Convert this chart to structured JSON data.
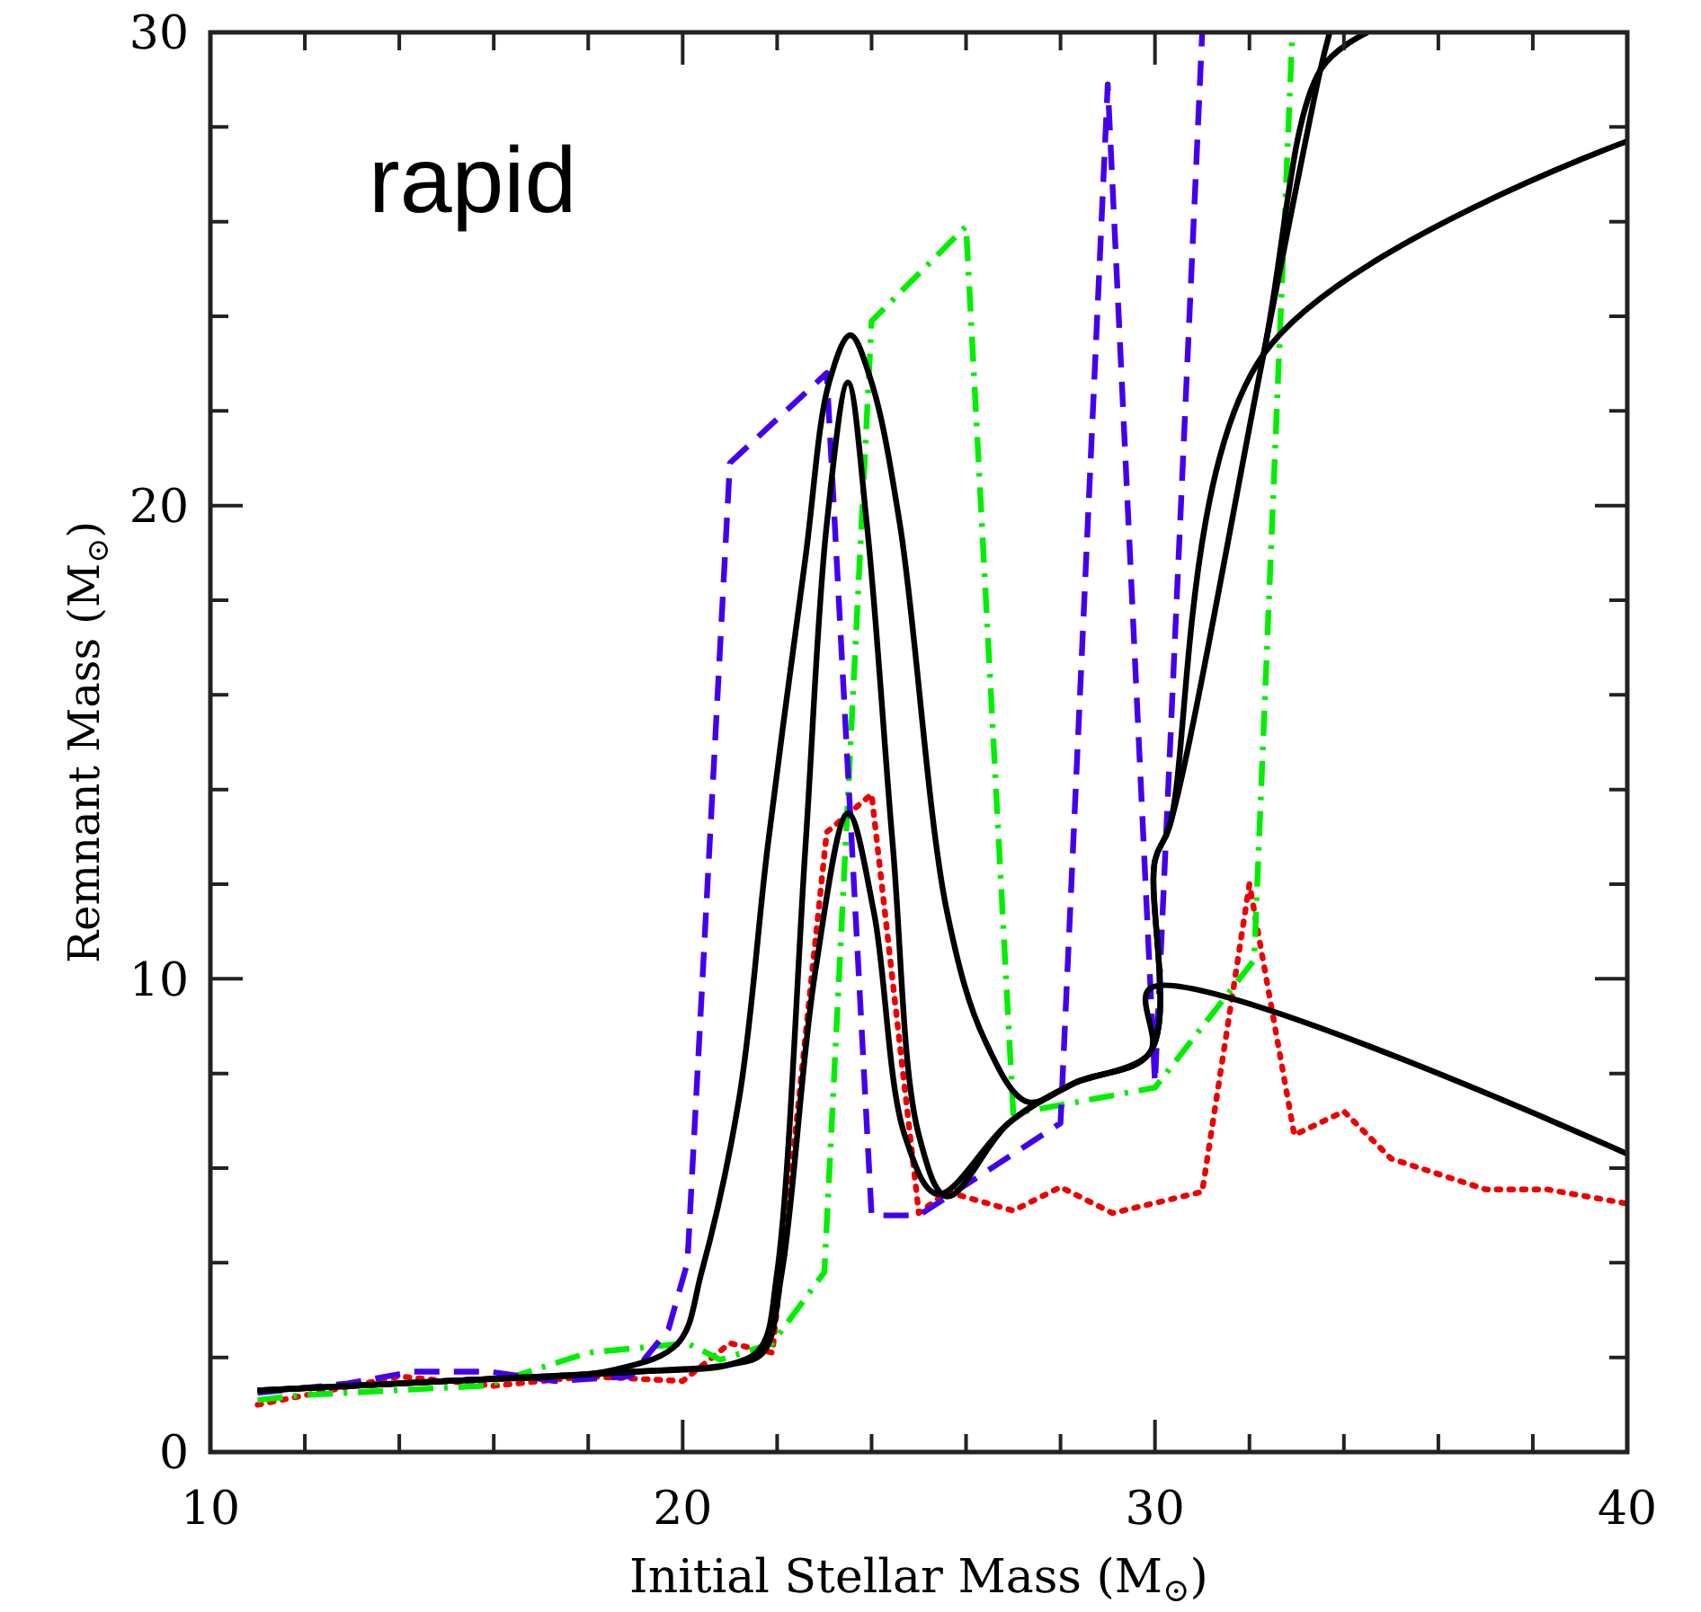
{
  "chart_data": {
    "type": "line",
    "xlabel": "Initial Stellar Mass (M$_{⊙}$)",
    "ylabel": "Remnant Mass (M$_{⊙}$)",
    "xlim": [
      10,
      40
    ],
    "ylim": [
      0,
      30
    ],
    "xticks": [
      10,
      {
        "value": 12,
        "label": null
      },
      {
        "value": 14,
        "label": null
      },
      {
        "value": 16,
        "label": null
      },
      {
        "value": 18,
        "label": null
      },
      20,
      {
        "value": 22,
        "label": null
      },
      {
        "value": 24,
        "label": null
      },
      {
        "value": 26,
        "label": null
      },
      {
        "value": 28,
        "label": null
      },
      30,
      {
        "value": 32,
        "label": null
      },
      {
        "value": 34,
        "label": null
      },
      {
        "value": 36,
        "label": null
      },
      {
        "value": 38,
        "label": null
      },
      40
    ],
    "yticks": [
      0,
      {
        "value": 2,
        "label": null
      },
      {
        "value": 4,
        "label": null
      },
      {
        "value": 6,
        "label": null
      },
      {
        "value": 8,
        "label": null
      },
      10,
      {
        "value": 12,
        "label": null
      },
      {
        "value": 14,
        "label": null
      },
      {
        "value": 16,
        "label": null
      },
      {
        "value": 18,
        "label": null
      },
      20,
      {
        "value": 22,
        "label": null
      },
      {
        "value": 24,
        "label": null
      },
      {
        "value": 26,
        "label": null
      },
      {
        "value": 28,
        "label": null
      },
      30
    ],
    "grid": false,
    "marker": "none",
    "annotations": [
      "rapid"
    ],
    "series": [
      {
        "color": "#ee0000",
        "line_style": "dotted",
        "x": [
          11,
          14,
          16,
          18,
          20,
          21,
          21.9,
          23.05,
          24,
          25,
          25.6,
          27,
          28,
          29.1,
          31,
          32,
          32.95,
          34,
          35,
          37,
          38.3,
          40
        ],
        "values": [
          1,
          1.6,
          1.4,
          1.6,
          1.5,
          2.3,
          2.1,
          13.1,
          13.9,
          5.05,
          5.5,
          5.1,
          5.6,
          5.05,
          5.5,
          12,
          6.7,
          7.2,
          6.2,
          5.55,
          5.55,
          5.25
        ]
      },
      {
        "color": "#00ee00",
        "line_style": "dashdot",
        "x": [
          11,
          11.9,
          15.8,
          18,
          20.1,
          20.8,
          21.9,
          23,
          24,
          26,
          27,
          30,
          32.1,
          32.9
        ],
        "values": [
          1.1,
          1.2,
          1.4,
          2.1,
          2.3,
          1.95,
          2.3,
          3.8,
          23.9,
          25.9,
          7.15,
          7.7,
          10.4,
          29.8
        ]
      },
      {
        "color": "#4400ee",
        "line_style": "dashed",
        "x": [
          11,
          12.9,
          14.3,
          15.9,
          17.3,
          18.9,
          19.7,
          20.1,
          21,
          23.05,
          24,
          25,
          28,
          29,
          30,
          31
        ],
        "values": [
          1.25,
          1.45,
          1.7,
          1.7,
          1.5,
          1.6,
          2.6,
          4,
          20.9,
          22.8,
          5,
          5,
          6.95,
          28.9,
          7.8,
          30
        ]
      },
      {
        "color": "#000000",
        "line_style": "solid",
        "x": [
          11,
          15,
          18.6,
          19.9,
          20.4,
          21.2,
          21.8,
          22.6,
          23.1,
          23.55,
          24,
          24.6,
          25.6,
          26.4,
          27.3,
          28.3,
          29.9,
          29.9,
          40
        ],
        "values": [
          1.3,
          1.5,
          1.75,
          2.3,
          3.8,
          7.5,
          12.8,
          18.9,
          22.6,
          23.6,
          22.6,
          19.6,
          11.4,
          8.7,
          7.4,
          7.8,
          8.45,
          9.8,
          6.3
        ]
      },
      {
        "color": "#000000",
        "line_style": "solid",
        "x": [
          11,
          15,
          19,
          21,
          21.65,
          22,
          22.6,
          23.05,
          23.5,
          23.9,
          24.45,
          25,
          25.6,
          26.9,
          28.3,
          29.9,
          30,
          30.3,
          32.3,
          40
        ],
        "values": [
          1.3,
          1.5,
          1.7,
          1.85,
          2.2,
          3.8,
          12.8,
          19.6,
          22.6,
          19.6,
          12.8,
          6.7,
          5.4,
          6.95,
          7.8,
          8.45,
          12.5,
          13.2,
          23.2,
          27.7
        ]
      },
      {
        "color": "#000000",
        "line_style": "solid",
        "x": [
          11,
          15,
          19,
          21,
          21.7,
          22.1,
          22.8,
          23.5,
          24.05,
          24.7,
          25.4,
          26.9,
          28.3,
          29.9,
          30,
          30.3,
          32.3,
          33.5,
          34.5
        ],
        "values": [
          1.3,
          1.5,
          1.7,
          1.85,
          2.1,
          3.8,
          10.1,
          13.5,
          11.4,
          6.7,
          5.45,
          6.95,
          7.8,
          8.45,
          12.5,
          13.2,
          23.2,
          29.2,
          30
        ]
      },
      {
        "color": "#000000",
        "line_style": "solid",
        "x": [
          32.3,
          33.5,
          33.7
        ],
        "values": [
          23.2,
          29.2,
          30
        ]
      }
    ]
  }
}
